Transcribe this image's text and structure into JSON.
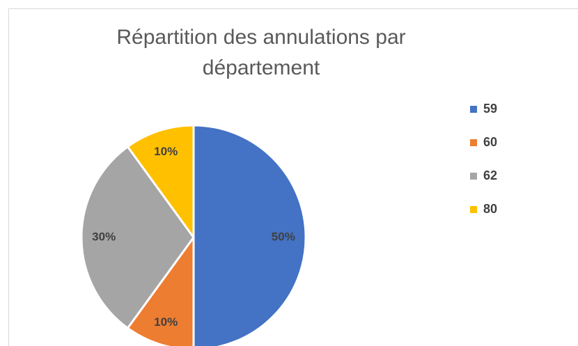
{
  "chart_data": {
    "type": "pie",
    "title": "Répartition des annulations par département",
    "categories": [
      "59",
      "60",
      "62",
      "80"
    ],
    "values": [
      50,
      10,
      30,
      10
    ],
    "value_labels": [
      "50%",
      "10%",
      "30%",
      "10%"
    ],
    "colors": [
      "#4472c4",
      "#ed7d31",
      "#a5a5a5",
      "#ffc000"
    ],
    "legend": "right"
  }
}
